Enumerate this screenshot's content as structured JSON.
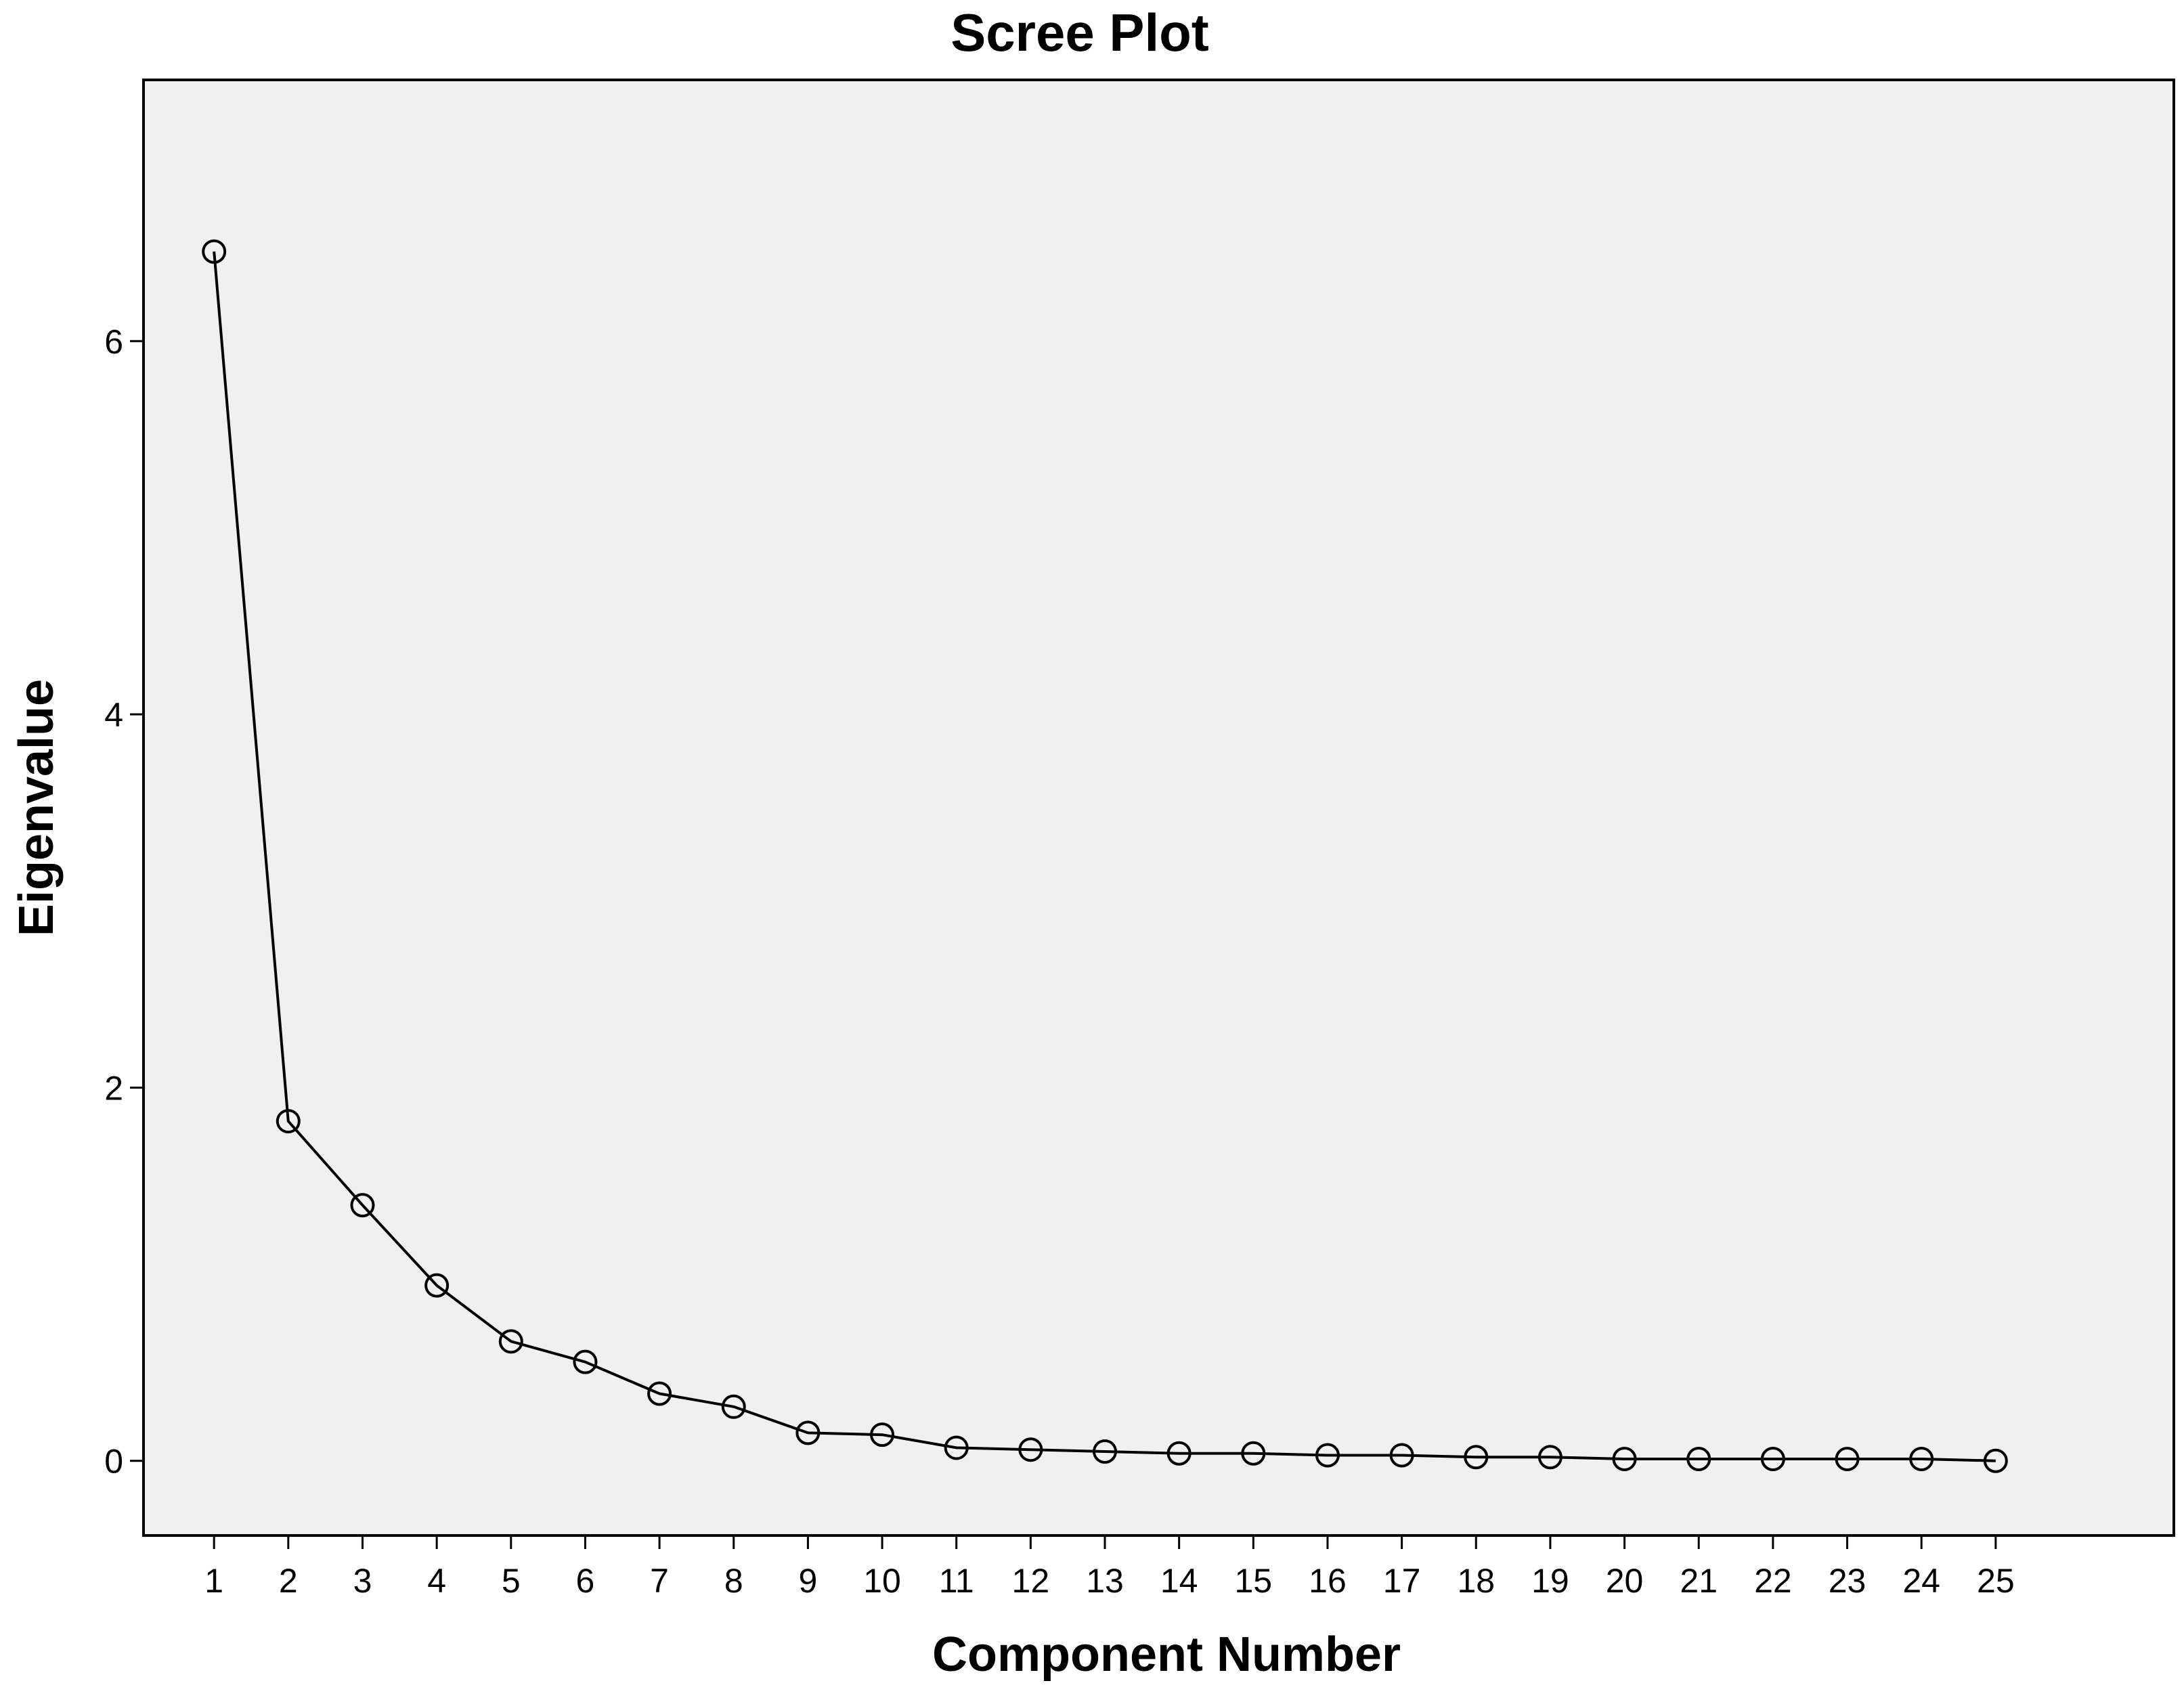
{
  "chart_data": {
    "type": "line",
    "title": "Scree Plot",
    "xlabel": "Component Number",
    "ylabel": "Eigenvalue",
    "x": [
      1,
      2,
      3,
      4,
      5,
      6,
      7,
      8,
      9,
      10,
      11,
      12,
      13,
      14,
      15,
      16,
      17,
      18,
      19,
      20,
      21,
      22,
      23,
      24,
      25
    ],
    "x_tick_labels": [
      "1",
      "2",
      "3",
      "4",
      "5",
      "6",
      "7",
      "8",
      "9",
      "10",
      "11",
      "12",
      "13",
      "14",
      "15",
      "16",
      "17",
      "18",
      "19",
      "20",
      "21",
      "22",
      "23",
      "24",
      "25"
    ],
    "series": [
      {
        "values": [
          6.48,
          1.82,
          1.37,
          0.94,
          0.64,
          0.53,
          0.36,
          0.29,
          0.15,
          0.14,
          0.07,
          0.06,
          0.05,
          0.04,
          0.04,
          0.03,
          0.03,
          0.02,
          0.02,
          0.01,
          0.01,
          0.01,
          0.01,
          0.01,
          0.0
        ],
        "marker": "open-circle",
        "color": "#000000"
      }
    ],
    "xlim": [
      0.05,
      27.4
    ],
    "ylim": [
      -0.4,
      7.4
    ],
    "y_ticks": [
      0,
      2,
      4,
      6
    ],
    "y_tick_labels": [
      "0",
      "2",
      "4",
      "6"
    ],
    "grid": false,
    "plot_background": "#f0f0f0",
    "page_background": "#ffffff"
  }
}
